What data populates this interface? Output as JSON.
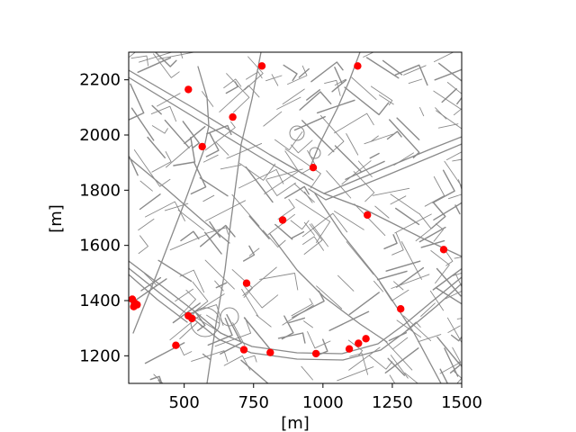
{
  "chart_data": {
    "type": "scatter",
    "title": "",
    "xlabel": "[m]",
    "ylabel": "[m]",
    "xlim": [
      300,
      1500
    ],
    "ylim": [
      1100,
      2300
    ],
    "xticks": [
      500,
      750,
      1000,
      1250,
      1500
    ],
    "xtick_labels": [
      "500",
      "750",
      "1000",
      "1250",
      "1500"
    ],
    "yticks": [
      1200,
      1400,
      1600,
      1800,
      2000,
      2200
    ],
    "ytick_labels": [
      "1200",
      "1400",
      "1600",
      "1800",
      "2000",
      "2200"
    ],
    "grid": false,
    "legend": "none",
    "background": "street network map",
    "road_color": "#8a8a8a",
    "marker_color": "#ff0000",
    "points": [
      {
        "x": 780,
        "y": 2250
      },
      {
        "x": 1125,
        "y": 2250
      },
      {
        "x": 515,
        "y": 2165
      },
      {
        "x": 675,
        "y": 2065
      },
      {
        "x": 565,
        "y": 1958
      },
      {
        "x": 965,
        "y": 1882
      },
      {
        "x": 1160,
        "y": 1710
      },
      {
        "x": 855,
        "y": 1692
      },
      {
        "x": 1435,
        "y": 1585
      },
      {
        "x": 725,
        "y": 1463
      },
      {
        "x": 1280,
        "y": 1370
      },
      {
        "x": 313,
        "y": 1405
      },
      {
        "x": 323,
        "y": 1390
      },
      {
        "x": 318,
        "y": 1378
      },
      {
        "x": 330,
        "y": 1385
      },
      {
        "x": 515,
        "y": 1345
      },
      {
        "x": 528,
        "y": 1335
      },
      {
        "x": 470,
        "y": 1238
      },
      {
        "x": 715,
        "y": 1222
      },
      {
        "x": 810,
        "y": 1212
      },
      {
        "x": 975,
        "y": 1208
      },
      {
        "x": 1095,
        "y": 1225
      },
      {
        "x": 1128,
        "y": 1245
      },
      {
        "x": 1155,
        "y": 1262
      }
    ]
  }
}
